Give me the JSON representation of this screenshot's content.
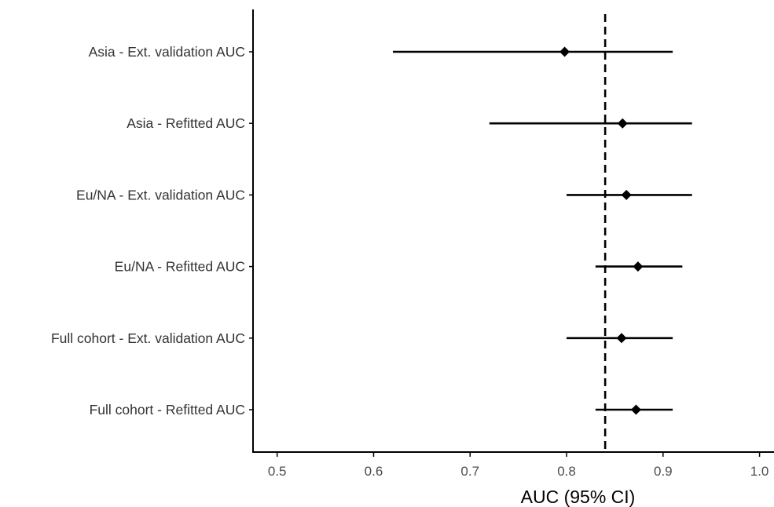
{
  "chart_data": {
    "type": "forest",
    "title": "",
    "xlabel": "AUC (95% CI)",
    "ylabel": "",
    "xlim": [
      0.475,
      1.015
    ],
    "x_ticks": [
      0.5,
      0.6,
      0.7,
      0.8,
      0.9,
      1.0
    ],
    "x_tick_labels": [
      "0.5",
      "0.6",
      "0.7",
      "0.8",
      "0.9",
      "1.0"
    ],
    "reference_line": 0.84,
    "grid": false,
    "legend": "none",
    "marker": "diamond",
    "colors": {
      "marker": "#000000",
      "interval": "#000000",
      "reference_line": "#000000",
      "axis": "#000000"
    },
    "categories": [
      "Asia - Ext. validation AUC",
      "Asia - Refitted AUC",
      "Eu/NA - Ext. validation AUC",
      "Eu/NA - Refitted AUC",
      "Full cohort - Ext. validation AUC",
      "Full cohort - Refitted AUC"
    ],
    "estimates": [
      0.798,
      0.858,
      0.862,
      0.874,
      0.857,
      0.872
    ],
    "lower": [
      0.62,
      0.72,
      0.8,
      0.83,
      0.8,
      0.83
    ],
    "upper": [
      0.91,
      0.93,
      0.93,
      0.92,
      0.91,
      0.91
    ]
  }
}
